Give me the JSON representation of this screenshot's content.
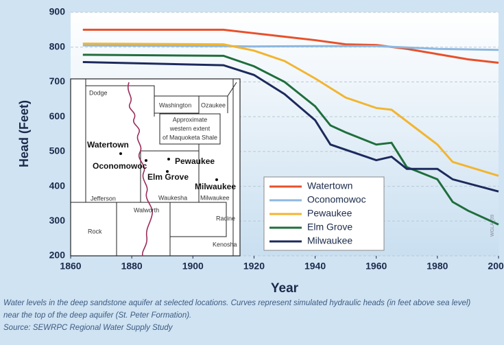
{
  "chart_data": {
    "type": "line",
    "ylabel": "Head (Feet)",
    "xlabel": "Year",
    "xlim": [
      1860,
      2000
    ],
    "xticks": [
      1860,
      1880,
      1900,
      1920,
      1940,
      1960,
      1980,
      2000
    ],
    "ylim": [
      200,
      900
    ],
    "yticks": [
      200,
      300,
      400,
      500,
      600,
      700,
      800,
      900
    ],
    "grid": true,
    "legend": "lower right",
    "series": [
      {
        "name": "Watertown",
        "color": "#e8502a",
        "x": [
          1864,
          1910,
          1920,
          1930,
          1940,
          1950,
          1960,
          1970,
          1980,
          1990,
          2000
        ],
        "values": [
          850,
          850,
          840,
          830,
          820,
          808,
          806,
          795,
          780,
          765,
          755
        ]
      },
      {
        "name": "Oconomowoc",
        "color": "#8db8e0",
        "x": [
          1864,
          1910,
          1920,
          1940,
          1960,
          1980,
          2000
        ],
        "values": [
          805,
          803,
          802,
          803,
          803,
          795,
          792
        ]
      },
      {
        "name": "Pewaukee",
        "color": "#f2b530",
        "x": [
          1864,
          1910,
          1920,
          1930,
          1940,
          1950,
          1960,
          1965,
          1980,
          1985,
          2000
        ],
        "values": [
          810,
          808,
          790,
          760,
          710,
          655,
          625,
          620,
          520,
          470,
          430
        ]
      },
      {
        "name": "Elm Grove",
        "color": "#1f6e3c",
        "x": [
          1864,
          1910,
          1920,
          1930,
          1940,
          1945,
          1950,
          1960,
          1965,
          1970,
          1980,
          1985,
          1990,
          2000
        ],
        "values": [
          778,
          775,
          745,
          700,
          630,
          575,
          555,
          520,
          525,
          455,
          420,
          355,
          330,
          290
        ]
      },
      {
        "name": "Milwaukee",
        "color": "#1c2a5c",
        "x": [
          1864,
          1910,
          1920,
          1930,
          1940,
          1945,
          1960,
          1965,
          1970,
          1980,
          1985,
          2000
        ],
        "values": [
          757,
          748,
          720,
          665,
          590,
          520,
          475,
          485,
          450,
          450,
          420,
          385
        ]
      }
    ]
  },
  "inset_map": {
    "labels": [
      "Dodge",
      "Washington",
      "Ozaukee",
      "Approximate",
      "western extent",
      "of Maquoketa Shale",
      "Watertown",
      "Oconomowoc",
      "Pewaukee",
      "Elm Grove",
      "Milwaukee",
      "Jefferson",
      "Waukesha",
      "Milwaukee",
      "Walworth",
      "Racine",
      "Rock",
      "Kenosha"
    ]
  },
  "figure_id": "WGLA_09",
  "caption": [
    "Water levels in the deep sandstone aquifer at selected locations. Curves represent simulated hydraulic heads (in feet above sea level)",
    "near the top of the deep aquifer (St. Peter Formation).",
    "Source: SEWRPC Regional Water Supply Study"
  ]
}
